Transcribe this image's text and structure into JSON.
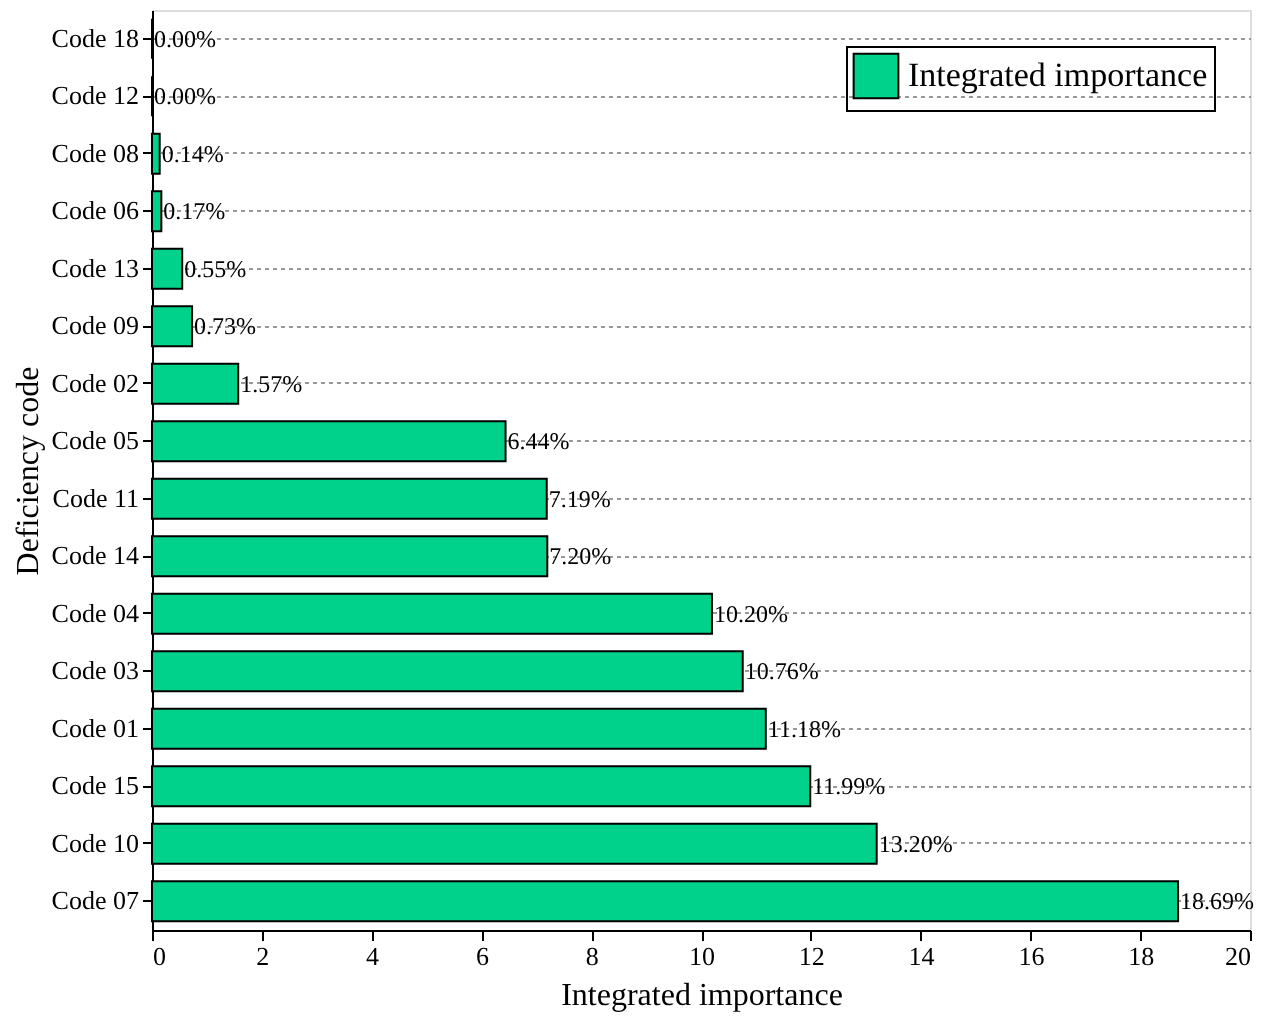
{
  "chart_data": {
    "type": "bar",
    "orientation": "horizontal",
    "xlabel": "Integrated importance",
    "ylabel": "Deficiency code",
    "categories": [
      "Code 18",
      "Code 12",
      "Code 08",
      "Code 06",
      "Code 13",
      "Code 09",
      "Code 02",
      "Code 05",
      "Code 11",
      "Code 14",
      "Code 04",
      "Code 03",
      "Code 01",
      "Code 15",
      "Code 10",
      "Code 07"
    ],
    "series": [
      {
        "name": "Integrated importance",
        "color": "#00d28c",
        "values": [
          0.0,
          0.0,
          0.14,
          0.17,
          0.55,
          0.73,
          1.57,
          6.44,
          7.19,
          7.2,
          10.2,
          10.76,
          11.18,
          11.99,
          13.2,
          18.69
        ],
        "value_labels": [
          "0.00%",
          "0.00%",
          "0.14%",
          "0.17%",
          "0.55%",
          "0.73%",
          "1.57%",
          "6.44%",
          "7.19%",
          "7.20%",
          "10.20%",
          "10.76%",
          "11.18%",
          "11.99%",
          "13.20%",
          "18.69%"
        ]
      }
    ],
    "xlim": [
      0,
      20
    ],
    "xticks": [
      0,
      2,
      4,
      6,
      8,
      10,
      12,
      14,
      16,
      18,
      20
    ],
    "grid": "y",
    "legend": "top right"
  }
}
